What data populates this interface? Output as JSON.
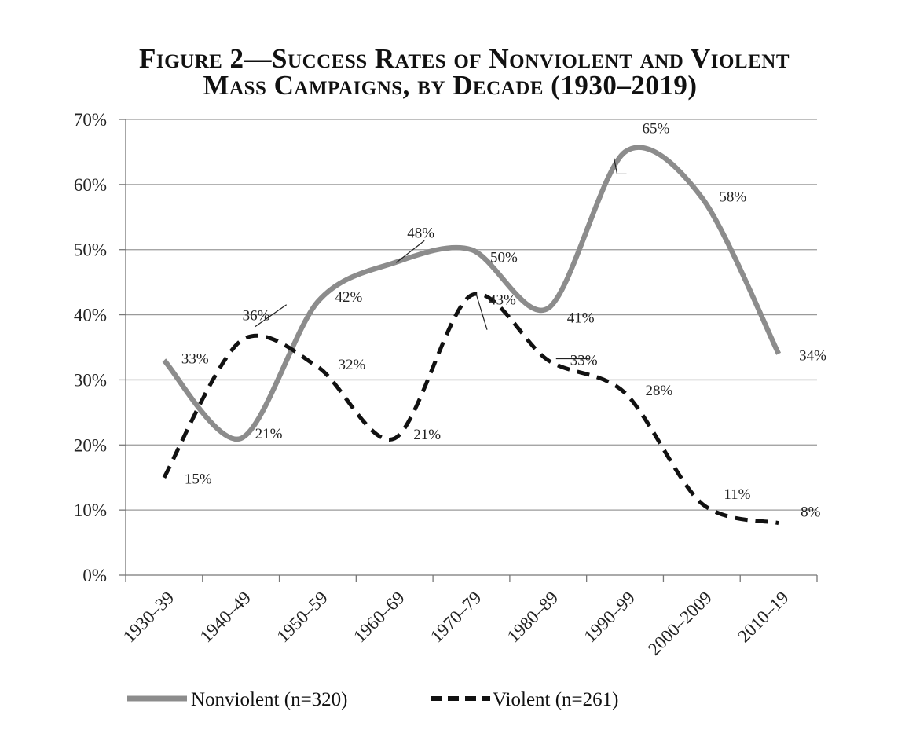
{
  "title_lines": [
    "Figure 2—Success Rates of Nonviolent and Violent",
    "Mass Campaigns, by Decade (1930–2019)"
  ],
  "chart_data": {
    "type": "line",
    "title": "Figure 2—Success Rates of Nonviolent and Violent Mass Campaigns, by Decade (1930–2019)",
    "xlabel": "",
    "ylabel": "",
    "ylim": [
      0,
      70
    ],
    "yticks": [
      0,
      10,
      20,
      30,
      40,
      50,
      60,
      70
    ],
    "ytick_labels": [
      "0%",
      "10%",
      "20%",
      "30%",
      "40%",
      "50%",
      "60%",
      "70%"
    ],
    "categories": [
      "1930–39",
      "1940–49",
      "1950–59",
      "1960–69",
      "1970–79",
      "1980–89",
      "1990–99",
      "2000–2009",
      "2010–19"
    ],
    "grid": true,
    "legend": "bottom",
    "series": [
      {
        "name": "Nonviolent (n=320)",
        "color": "#8c8c8c",
        "style": "solid",
        "values": [
          33,
          21,
          42,
          48,
          50,
          41,
          65,
          58,
          34
        ],
        "labels": [
          "33%",
          "21%",
          "42%",
          "48%",
          "50%",
          "41%",
          "65%",
          "58%",
          "34%"
        ]
      },
      {
        "name": "Violent (n=261)",
        "color": "#111111",
        "style": "dashed",
        "values": [
          15,
          36,
          32,
          21,
          43,
          33,
          28,
          11,
          8
        ],
        "labels": [
          "15%",
          "36%",
          "32%",
          "21%",
          "43%",
          "33%",
          "28%",
          "11%",
          "8%"
        ]
      }
    ]
  }
}
